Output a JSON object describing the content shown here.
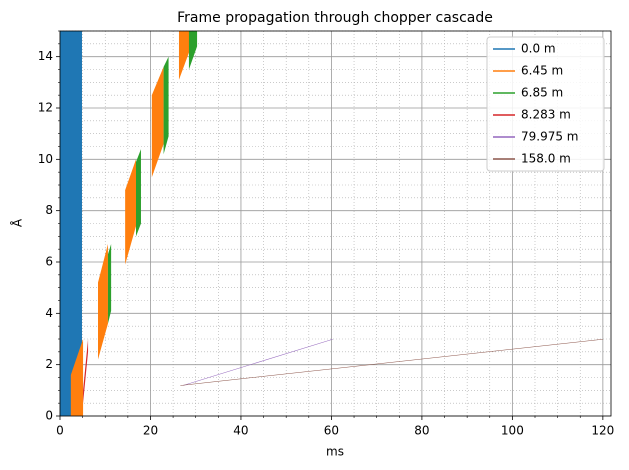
{
  "chart_data": {
    "type": "polygon",
    "title": "Frame propagation through chopper cascade",
    "xlabel": "ms",
    "ylabel": "Å",
    "xlim": [
      0,
      121.8
    ],
    "ylim": [
      0,
      15
    ],
    "xticks": [
      0,
      20,
      40,
      60,
      80,
      100,
      120
    ],
    "yticks": [
      0,
      2,
      4,
      6,
      8,
      10,
      12,
      14
    ],
    "grid": true,
    "minor_grid": true,
    "legend": "upper right",
    "series": [
      {
        "name": "0.0 m",
        "color": "#1f77b4",
        "polygons": [
          {
            "x": [
              0,
              4.86,
              4.86,
              0
            ],
            "y": [
              0,
              0,
              15,
              15
            ]
          }
        ]
      },
      {
        "name": "6.45 m",
        "color": "#ff7f0e",
        "polygons": [
          {
            "x": [
              2.4,
              5.1,
              5.1,
              2.4
            ],
            "y": [
              0,
              0,
              3.0,
              1.6
            ]
          },
          {
            "x": [
              8.4,
              10.6,
              10.6,
              8.4
            ],
            "y": [
              2.2,
              3.6,
              6.7,
              5.2
            ]
          },
          {
            "x": [
              14.4,
              16.8,
              16.8,
              14.4
            ],
            "y": [
              5.9,
              7.4,
              10.0,
              8.8
            ]
          },
          {
            "x": [
              20.3,
              22.9,
              22.9,
              20.3
            ],
            "y": [
              9.3,
              10.6,
              13.6,
              12.5
            ]
          },
          {
            "x": [
              26.3,
              28.8,
              28.8,
              26.3
            ],
            "y": [
              13.1,
              14.3,
              15,
              15
            ]
          }
        ]
      },
      {
        "name": "6.85 m",
        "color": "#2ca02c",
        "polygons": [
          {
            "x": [
              10.6,
              11.3,
              11.3,
              10.6
            ],
            "y": [
              3.6,
              4.1,
              6.7,
              6.3
            ]
          },
          {
            "x": [
              16.8,
              17.9,
              17.9,
              16.8
            ],
            "y": [
              7.0,
              7.5,
              10.4,
              9.9
            ]
          },
          {
            "x": [
              22.9,
              24.0,
              24.0,
              22.9
            ],
            "y": [
              10.2,
              10.9,
              14.0,
              13.6
            ]
          },
          {
            "x": [
              28.5,
              30.3,
              30.3,
              28.5
            ],
            "y": [
              13.5,
              14.4,
              15,
              15
            ]
          }
        ]
      },
      {
        "name": "8.283 m",
        "color": "#d62728",
        "polygons": [
          {
            "x": [
              5.1,
              6.2,
              6.2,
              5.1
            ],
            "y": [
              0.5,
              2.5,
              3.0,
              1.0
            ]
          }
        ]
      },
      {
        "name": "79.975 m",
        "color": "#9467bd",
        "polygons": [
          {
            "x": [
              27.2,
              60.3,
              60.3,
              27.2
            ],
            "y": [
              1.18,
              2.98,
              3.0,
              1.2
            ]
          }
        ]
      },
      {
        "name": "158.0 m",
        "color": "#8c564b",
        "polygons": [
          {
            "x": [
              26.6,
              120,
              120,
              26.6
            ],
            "y": [
              1.18,
              2.98,
              3.0,
              1.2
            ]
          }
        ]
      }
    ]
  }
}
